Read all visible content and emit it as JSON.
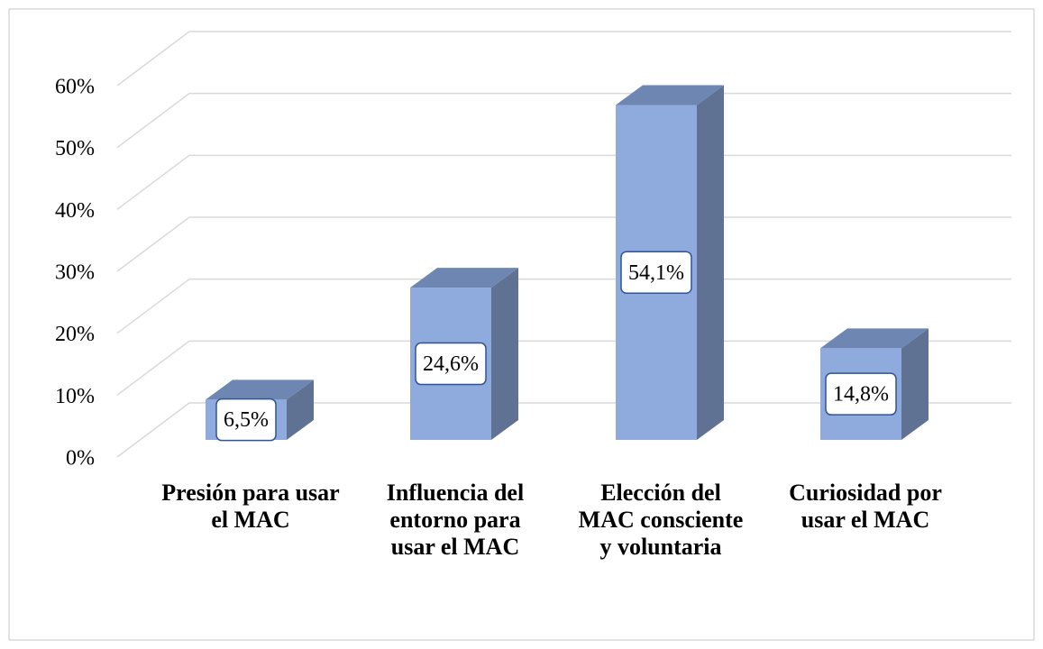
{
  "chart_data": {
    "type": "bar3d",
    "categories": [
      "Presión para usar el MAC",
      "Influencia del entorno para usar el MAC",
      "Elección del MAC consciente y voluntaria",
      "Curiosidad por usar el MAC"
    ],
    "values": [
      6.5,
      24.6,
      54.1,
      14.8
    ],
    "value_labels": [
      "6,5%",
      "24,6%",
      "54,1%",
      "14,8%"
    ],
    "color": "#8faadc",
    "ylim": [
      0,
      60
    ],
    "yticks": [
      {
        "value": 0,
        "label": "0%"
      },
      {
        "value": 10,
        "label": "10%"
      },
      {
        "value": 20,
        "label": "20%"
      },
      {
        "value": 30,
        "label": "30%"
      },
      {
        "value": 40,
        "label": "40%"
      },
      {
        "value": 50,
        "label": "50%"
      },
      {
        "value": 60,
        "label": "60%"
      }
    ],
    "grid": true
  }
}
